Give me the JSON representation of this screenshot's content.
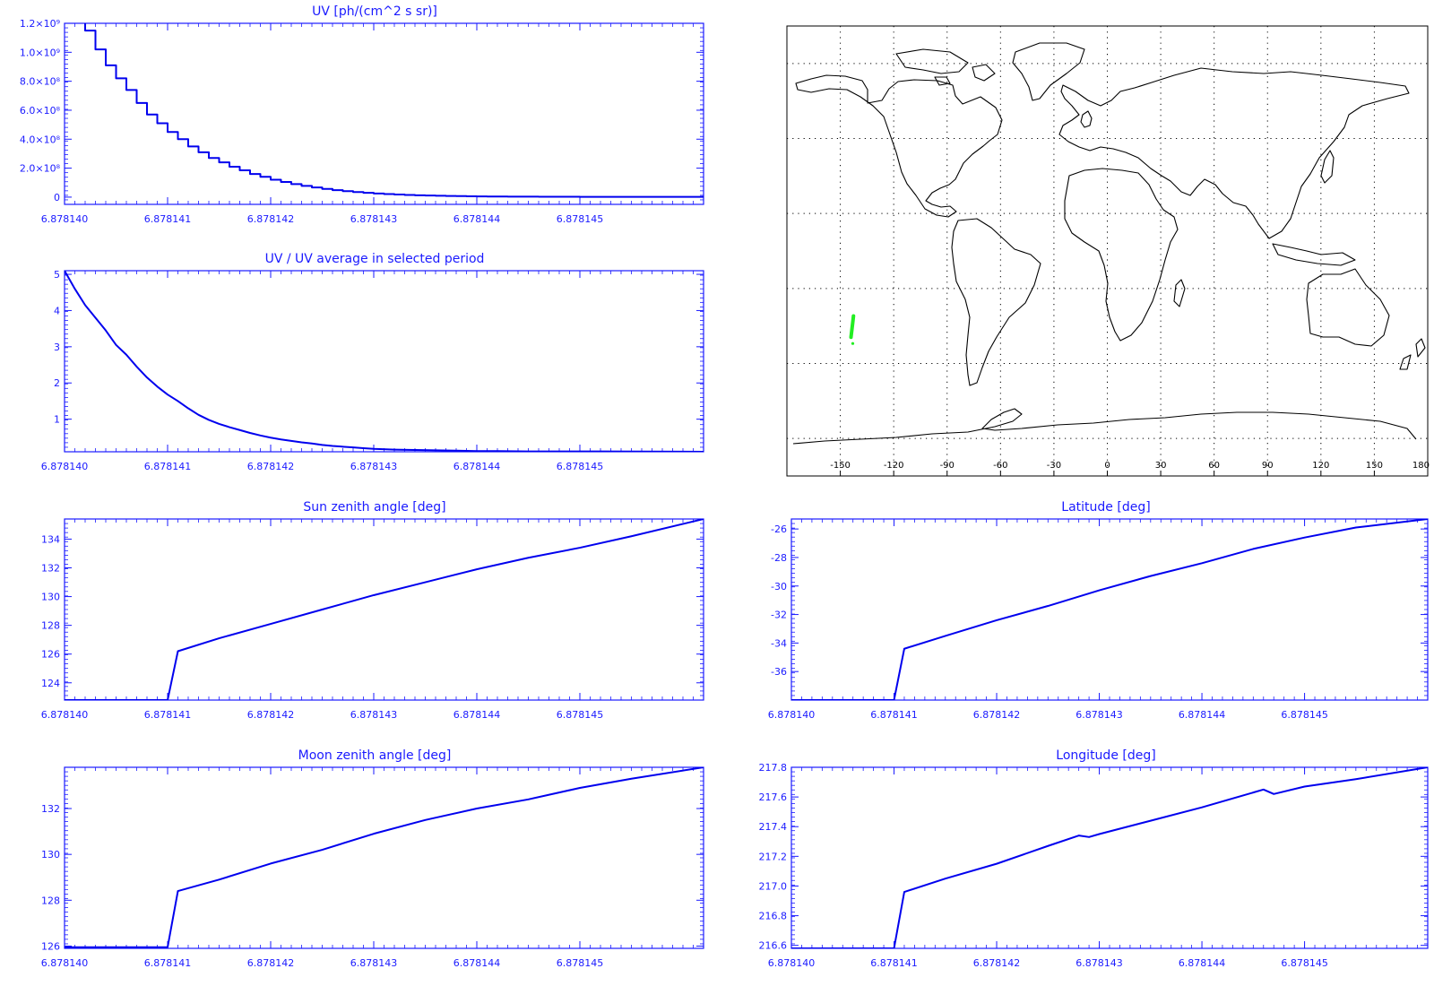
{
  "colors": {
    "axis": "#1a1aff",
    "line": "#0000ee",
    "map_outline": "#000000",
    "map_grid": "#000000",
    "track": "#22ee22"
  },
  "x_ticks": [
    "6.878140",
    "6.878141",
    "6.878142",
    "6.878143",
    "6.878144",
    "6.878145"
  ],
  "chart_data": [
    {
      "id": "uv",
      "type": "line",
      "step": true,
      "title": "UV [ph/(cm^2 s sr)]",
      "xlim": [
        6.87814,
        6.8781462
      ],
      "ylim": [
        -50000000,
        1200000000
      ],
      "y_ticks": [
        {
          "v": 0,
          "label": "0"
        },
        {
          "v": 200000000,
          "label": "2.0×10⁸"
        },
        {
          "v": 400000000,
          "label": "4.0×10⁸"
        },
        {
          "v": 600000000,
          "label": "6.0×10⁸"
        },
        {
          "v": 800000000,
          "label": "8.0×10⁸"
        },
        {
          "v": 1000000000,
          "label": "1.0×10⁹"
        },
        {
          "v": 1200000000,
          "label": "1.2×10⁹"
        }
      ],
      "x": [
        6.87814,
        6.8781402,
        6.8781403,
        6.8781404,
        6.8781405,
        6.8781406,
        6.8781407,
        6.8781408,
        6.8781409,
        6.878141,
        6.8781411,
        6.8781412,
        6.8781413,
        6.8781414,
        6.8781415,
        6.8781416,
        6.8781417,
        6.8781418,
        6.8781419,
        6.878142,
        6.8781421,
        6.8781422,
        6.8781423,
        6.8781424,
        6.8781425,
        6.8781426,
        6.8781427,
        6.8781428,
        6.8781429,
        6.878143,
        6.8781431,
        6.8781432,
        6.8781433,
        6.8781434,
        6.8781435,
        6.8781436,
        6.8781437,
        6.8781438,
        6.8781439,
        6.878144,
        6.8781441,
        6.8781442,
        6.8781443,
        6.8781444,
        6.8781446,
        6.878145,
        6.8781462
      ],
      "y": [
        1250000000,
        1150000000,
        1020000000,
        910000000,
        820000000,
        740000000,
        650000000,
        570000000,
        510000000,
        450000000,
        400000000,
        350000000,
        310000000,
        270000000,
        240000000,
        210000000,
        185000000,
        160000000,
        140000000,
        120000000,
        105000000,
        90000000,
        78000000,
        67000000,
        57000000,
        48000000,
        41000000,
        35000000,
        30000000,
        25000000,
        21000000,
        18000000,
        15000000,
        13000000,
        11000000,
        9500000,
        8000000,
        7000000,
        6000000,
        5000000,
        4500000,
        4000000,
        3500000,
        3000000,
        2500000,
        2000000,
        1500000
      ]
    },
    {
      "id": "uv-ratio",
      "type": "line",
      "title": "UV / UV average in selected period",
      "xlim": [
        6.87814,
        6.8781462
      ],
      "ylim": [
        0.1,
        5.1
      ],
      "y_ticks": [
        {
          "v": 1,
          "label": "1"
        },
        {
          "v": 2,
          "label": "2"
        },
        {
          "v": 3,
          "label": "3"
        },
        {
          "v": 4,
          "label": "4"
        },
        {
          "v": 5,
          "label": "5"
        }
      ],
      "x": [
        6.87814,
        6.8781401,
        6.8781402,
        6.8781403,
        6.8781404,
        6.8781405,
        6.8781406,
        6.8781407,
        6.8781408,
        6.8781409,
        6.878141,
        6.8781411,
        6.8781412,
        6.8781413,
        6.8781414,
        6.8781415,
        6.8781416,
        6.8781417,
        6.8781418,
        6.8781419,
        6.878142,
        6.8781421,
        6.8781422,
        6.8781423,
        6.8781424,
        6.8781425,
        6.8781426,
        6.8781427,
        6.8781428,
        6.8781429,
        6.878143,
        6.8781432,
        6.8781434,
        6.8781436,
        6.8781438,
        6.878144,
        6.8781442,
        6.8781445,
        6.8781448,
        6.8781452,
        6.8781462
      ],
      "y": [
        5.1,
        4.6,
        4.15,
        3.8,
        3.45,
        3.05,
        2.78,
        2.45,
        2.15,
        1.9,
        1.68,
        1.5,
        1.3,
        1.12,
        0.98,
        0.87,
        0.78,
        0.7,
        0.62,
        0.55,
        0.49,
        0.44,
        0.4,
        0.36,
        0.33,
        0.29,
        0.26,
        0.24,
        0.22,
        0.2,
        0.18,
        0.16,
        0.15,
        0.14,
        0.13,
        0.12,
        0.12,
        0.11,
        0.11,
        0.11,
        0.1
      ]
    },
    {
      "id": "sun-zenith",
      "type": "line",
      "title": "Sun zenith angle [deg]",
      "xlim": [
        6.87814,
        6.8781462
      ],
      "ylim": [
        122.8,
        135.4
      ],
      "y_ticks": [
        {
          "v": 124,
          "label": "124"
        },
        {
          "v": 126,
          "label": "126"
        },
        {
          "v": 128,
          "label": "128"
        },
        {
          "v": 130,
          "label": "130"
        },
        {
          "v": 132,
          "label": "132"
        },
        {
          "v": 134,
          "label": "134"
        }
      ],
      "x": [
        6.87814,
        6.878141,
        6.8781411,
        6.8781415,
        6.878142,
        6.8781425,
        6.878143,
        6.8781435,
        6.878144,
        6.8781445,
        6.878145,
        6.8781455,
        6.8781462
      ],
      "y": [
        122.8,
        122.8,
        126.2,
        127.1,
        128.1,
        129.1,
        130.1,
        131.0,
        131.9,
        132.7,
        133.4,
        134.2,
        135.4
      ]
    },
    {
      "id": "latitude",
      "type": "line",
      "title": "Latitude [deg]",
      "xlim": [
        6.87814,
        6.8781462
      ],
      "ylim": [
        -38,
        -25.3
      ],
      "y_ticks": [
        {
          "v": -36,
          "label": "-36"
        },
        {
          "v": -34,
          "label": "-34"
        },
        {
          "v": -32,
          "label": "-32"
        },
        {
          "v": -30,
          "label": "-30"
        },
        {
          "v": -28,
          "label": "-28"
        },
        {
          "v": -26,
          "label": "-26"
        }
      ],
      "x": [
        6.87814,
        6.878141,
        6.8781411,
        6.8781415,
        6.878142,
        6.8781425,
        6.878143,
        6.8781435,
        6.878144,
        6.8781445,
        6.878145,
        6.8781455,
        6.8781462
      ],
      "y": [
        -38,
        -38,
        -34.4,
        -33.5,
        -32.4,
        -31.4,
        -30.3,
        -29.3,
        -28.4,
        -27.4,
        -26.6,
        -25.9,
        -25.3
      ]
    },
    {
      "id": "moon-zenith",
      "type": "line",
      "title": "Moon zenith angle [deg]",
      "xlim": [
        6.87814,
        6.8781462
      ],
      "ylim": [
        125.9,
        133.8
      ],
      "y_ticks": [
        {
          "v": 126,
          "label": "126"
        },
        {
          "v": 128,
          "label": "128"
        },
        {
          "v": 130,
          "label": "130"
        },
        {
          "v": 132,
          "label": "132"
        }
      ],
      "x": [
        6.87814,
        6.878141,
        6.8781411,
        6.8781415,
        6.878142,
        6.8781425,
        6.878143,
        6.8781435,
        6.878144,
        6.8781445,
        6.878145,
        6.8781455,
        6.8781462
      ],
      "y": [
        125.95,
        125.95,
        128.4,
        128.9,
        129.6,
        130.2,
        130.9,
        131.5,
        132.0,
        132.4,
        132.9,
        133.3,
        133.8
      ]
    },
    {
      "id": "longitude",
      "type": "line",
      "title": "Longitude [deg]",
      "xlim": [
        6.87814,
        6.8781462
      ],
      "ylim": [
        216.58,
        217.8
      ],
      "y_ticks": [
        {
          "v": 216.6,
          "label": "216.6"
        },
        {
          "v": 216.8,
          "label": "216.8"
        },
        {
          "v": 217.0,
          "label": "217.0"
        },
        {
          "v": 217.2,
          "label": "217.2"
        },
        {
          "v": 217.4,
          "label": "217.4"
        },
        {
          "v": 217.6,
          "label": "217.6"
        },
        {
          "v": 217.8,
          "label": "217.8"
        }
      ],
      "x": [
        6.87814,
        6.878141,
        6.8781411,
        6.8781415,
        6.878142,
        6.8781425,
        6.8781428,
        6.8781429,
        6.878143,
        6.8781435,
        6.878144,
        6.8781445,
        6.8781446,
        6.8781447,
        6.878145,
        6.8781455,
        6.8781462
      ],
      "y": [
        216.58,
        216.58,
        216.96,
        217.05,
        217.15,
        217.27,
        217.34,
        217.33,
        217.35,
        217.44,
        217.53,
        217.63,
        217.65,
        217.62,
        217.67,
        217.72,
        217.8
      ]
    }
  ],
  "map": {
    "lon_ticks": [
      "-150",
      "-120",
      "-90",
      "-60",
      "-30",
      "0",
      "30",
      "60",
      "90",
      "120",
      "150",
      "180"
    ],
    "lon_values": [
      -150,
      -120,
      -90,
      -60,
      -30,
      0,
      30,
      60,
      90,
      120,
      150,
      180
    ],
    "lat_grid": [
      75,
      45,
      15,
      -15,
      -45,
      -75
    ],
    "track": {
      "lon": [
        -144,
        -143.5,
        -143,
        -142.6
      ],
      "lat": [
        -34.5,
        -31.5,
        -28.5,
        -26
      ]
    },
    "track_dot": {
      "lon": -143,
      "lat": -37
    }
  }
}
